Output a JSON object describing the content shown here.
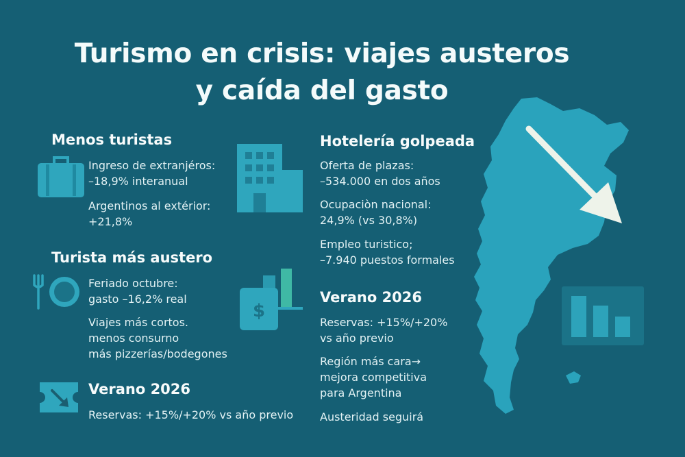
{
  "title": {
    "line1": "Turismo en crisis: viajes austeros",
    "line2": "y caída del gasto"
  },
  "colors": {
    "background": "#155f74",
    "icon": "#2fa6bd",
    "map": "#2aa3bc",
    "arrow": "#eef3ea",
    "accent_green": "#3fb9a5"
  },
  "left": {
    "menos_turistas": {
      "heading": "Menos turistas",
      "icon": "suitcase-icon",
      "ingreso_l1": "Ingreso de extranjéros:",
      "ingreso_l2": "–18,9% interanual",
      "arg_l1": "Argentinos al extérior:",
      "arg_l2": "+21,8%"
    },
    "turista_austero": {
      "heading": "Turista más austero",
      "icon": "plate-fork-icon",
      "feriado_l1": "Feriado octubre:",
      "feriado_l2": "gasto –16,2% real",
      "viajes_l1": "Viajes más cortos.",
      "viajes_l2": "menos consurno",
      "viajes_l3": "más pizzerías/bodegones"
    },
    "verano": {
      "heading": "Verano 2026",
      "icon": "ticket-arrow-icon",
      "reservas": "Reservas:  +15%/+20% vs año previo"
    }
  },
  "right": {
    "hoteleria": {
      "heading": "Hotelería golpeada",
      "icon": "building-icon",
      "oferta_l1": "Oferta de plazas:",
      "oferta_l2": "–534.000 en dos años",
      "ocup_l1": "Ocupaciòn nacional:",
      "ocup_l2": "24,9% (vs 30,8%)",
      "empleo_l1": "Empleo turistico;",
      "empleo_l2": "–7.940 puestos formales"
    },
    "verano": {
      "heading": "Verano 2026",
      "icon": "money-bars-icon",
      "reservas_l1": "Reservas: +15%/+20%",
      "reservas_l2": "vs año previo",
      "region_l1": "Región más cara→",
      "region_l2": "mejora competitiva",
      "region_l3": "para Argentina",
      "austeridad": "Austeridad seguirá"
    }
  },
  "decor": {
    "map": "argentina-map",
    "arrow": "down-arrow-icon",
    "chart": "bar-chart-icon"
  }
}
